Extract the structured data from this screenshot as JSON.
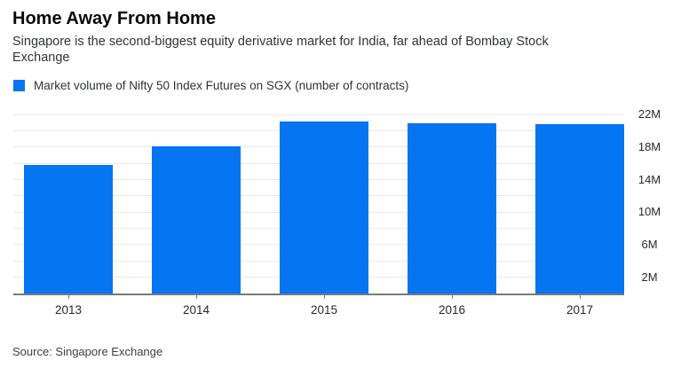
{
  "header": {
    "title": "Home Away From Home",
    "subtitle": "Singapore is the second-biggest equity derivative market for India, far ahead of Bombay Stock Exchange"
  },
  "legend": {
    "label": "Market volume of Nifty 50 Index Futures on SGX (number of contracts)"
  },
  "source": "Source: Singapore Exchange",
  "colors": {
    "bar": "#0675f2",
    "grid": "#e9e9e9",
    "axis": "#77787a",
    "title_text": "#0a0a0a",
    "body_text": "#2e3338"
  },
  "chart_data": {
    "type": "bar",
    "title": "Home Away From Home",
    "series_name": "Market volume of Nifty 50 Index Futures on SGX (number of contracts)",
    "categories": [
      "2013",
      "2014",
      "2015",
      "2016",
      "2017"
    ],
    "values": [
      15.8,
      18.1,
      21.2,
      20.95,
      20.85
    ],
    "unit": "M",
    "xlabel": "",
    "ylabel": "",
    "ylim": [
      0,
      23
    ],
    "gridline_step": 2,
    "ytick_values": [
      2,
      6,
      10,
      14,
      18,
      22
    ],
    "ytick_labels": [
      "2M",
      "6M",
      "10M",
      "14M",
      "18M",
      "22M"
    ],
    "grid": true,
    "legend_position": "top-left",
    "yaxis_side": "right"
  }
}
